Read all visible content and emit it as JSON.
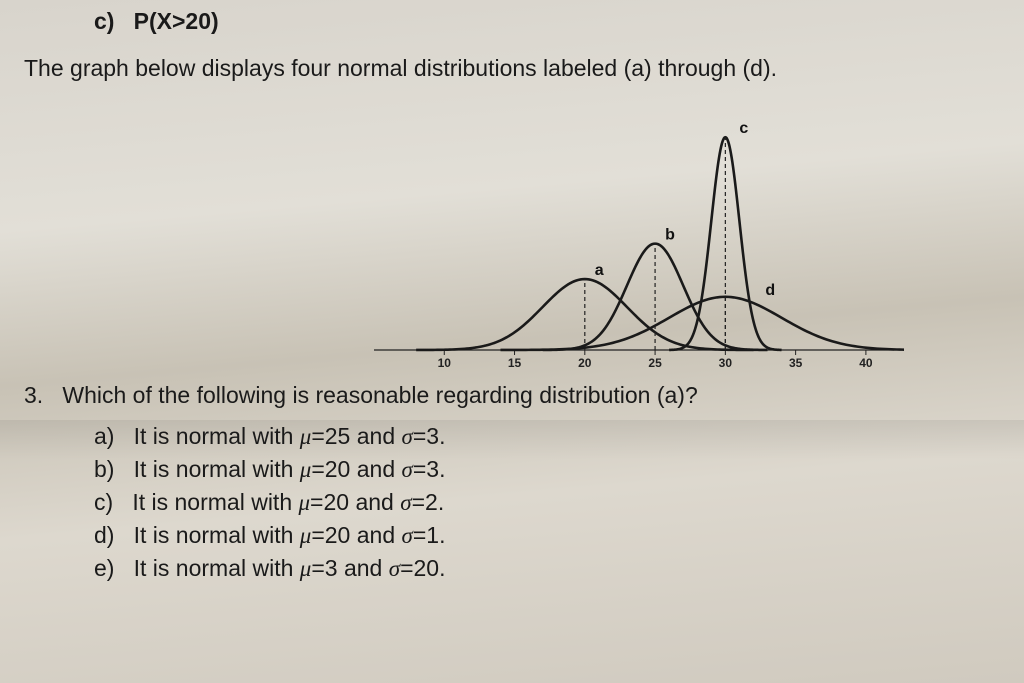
{
  "header": {
    "part_c_label": "c)",
    "part_c_text": "P(X>20)"
  },
  "intro": "The graph below displays four normal distributions labeled (a) through (d).",
  "chart": {
    "type": "line",
    "xlim": [
      5,
      42
    ],
    "ylim": [
      0,
      0.45
    ],
    "xtick_start": 10,
    "xtick_step": 5,
    "xtick_end": 40,
    "axis_color": "#222222",
    "dash_color": "#222222",
    "curve_color": "#1a1a1a",
    "curve_stroke_width": 2.6,
    "grid_on": false,
    "background": "transparent",
    "curves": [
      {
        "label": "a",
        "mu": 20,
        "sigma": 3
      },
      {
        "label": "b",
        "mu": 25,
        "sigma": 2
      },
      {
        "label": "c",
        "mu": 30,
        "sigma": 1
      },
      {
        "label": "d",
        "mu": 30,
        "sigma": 4
      }
    ],
    "label_fontsize": 16
  },
  "question3": {
    "number": "3.",
    "text": "Which of the following is reasonable regarding distribution (a)?"
  },
  "options": {
    "a": {
      "tag": "a)",
      "prefix": "It is normal with ",
      "mu": "25",
      "sigma": "3"
    },
    "b": {
      "tag": "b)",
      "prefix": "It is normal with ",
      "mu": "20",
      "sigma": "3"
    },
    "c": {
      "tag": "c)",
      "prefix": "It is normal with ",
      "mu": "20",
      "sigma": "2"
    },
    "d": {
      "tag": "d)",
      "prefix": "It is normal with ",
      "mu": "20",
      "sigma": "1"
    },
    "e": {
      "tag": "e)",
      "prefix": "It is normal with ",
      "mu": "3",
      "sigma": "20"
    }
  }
}
